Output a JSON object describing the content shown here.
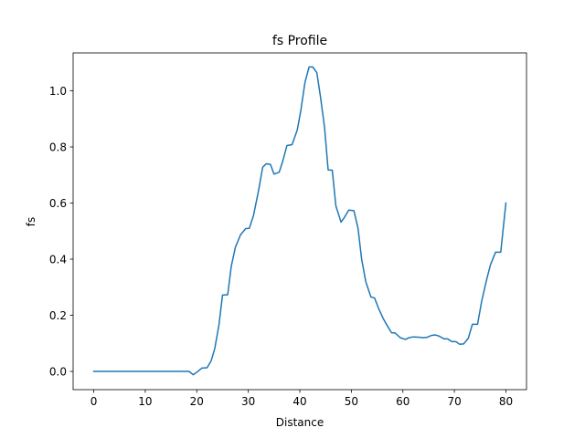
{
  "chart_data": {
    "type": "line",
    "title": "fs Profile",
    "xlabel": "Distance",
    "ylabel": "fs",
    "xlim": [
      -4,
      84
    ],
    "ylim": [
      -0.065,
      1.135
    ],
    "xticks": [
      0,
      10,
      20,
      30,
      40,
      50,
      60,
      70,
      80
    ],
    "xtick_labels": [
      "0",
      "10",
      "20",
      "30",
      "40",
      "50",
      "60",
      "70",
      "80"
    ],
    "yticks": [
      0.0,
      0.2,
      0.4,
      0.6,
      0.8,
      1.0
    ],
    "ytick_labels": [
      "0.0",
      "0.2",
      "0.4",
      "0.6",
      "0.8",
      "1.0"
    ],
    "grid": false,
    "legend": "none",
    "series": [
      {
        "color": "#1f77b4",
        "x": [
          0,
          5,
          10,
          15,
          18.5,
          19.3,
          20.0,
          21.0,
          22.0,
          22.8,
          23.5,
          24.3,
          25.0,
          26.0,
          26.7,
          27.5,
          28.5,
          29.5,
          30.2,
          31.0,
          32.0,
          32.8,
          33.5,
          34.3,
          35.0,
          36.0,
          36.7,
          37.5,
          38.5,
          39.5,
          40.2,
          41.0,
          41.8,
          42.5,
          43.3,
          44.0,
          44.8,
          45.5,
          46.3,
          47.0,
          48.0,
          48.7,
          49.5,
          50.5,
          51.3,
          52.0,
          52.8,
          53.8,
          54.5,
          55.3,
          56.2,
          57.0,
          57.8,
          58.5,
          59.5,
          60.5,
          61.2,
          62.0,
          63.0,
          64.0,
          64.8,
          65.5,
          66.3,
          67.0,
          68.0,
          68.7,
          69.5,
          70.3,
          71.0,
          71.8,
          72.7,
          73.5,
          74.5,
          75.3,
          76.3,
          77.0,
          78.0,
          79.0,
          80.0
        ],
        "y": [
          0.0,
          0.0,
          0.0,
          0.0,
          0.0,
          -0.012,
          -0.003,
          0.012,
          0.013,
          0.038,
          0.082,
          0.165,
          0.272,
          0.273,
          0.375,
          0.443,
          0.487,
          0.509,
          0.51,
          0.555,
          0.645,
          0.728,
          0.74,
          0.738,
          0.703,
          0.71,
          0.75,
          0.805,
          0.808,
          0.86,
          0.93,
          1.03,
          1.085,
          1.085,
          1.065,
          0.98,
          0.87,
          0.718,
          0.717,
          0.59,
          0.532,
          0.55,
          0.575,
          0.573,
          0.51,
          0.4,
          0.32,
          0.265,
          0.262,
          0.224,
          0.188,
          0.162,
          0.138,
          0.137,
          0.12,
          0.114,
          0.12,
          0.123,
          0.122,
          0.12,
          0.122,
          0.128,
          0.13,
          0.126,
          0.116,
          0.116,
          0.106,
          0.106,
          0.097,
          0.098,
          0.118,
          0.168,
          0.168,
          0.25,
          0.33,
          0.38,
          0.425,
          0.425,
          0.6
        ]
      }
    ]
  }
}
